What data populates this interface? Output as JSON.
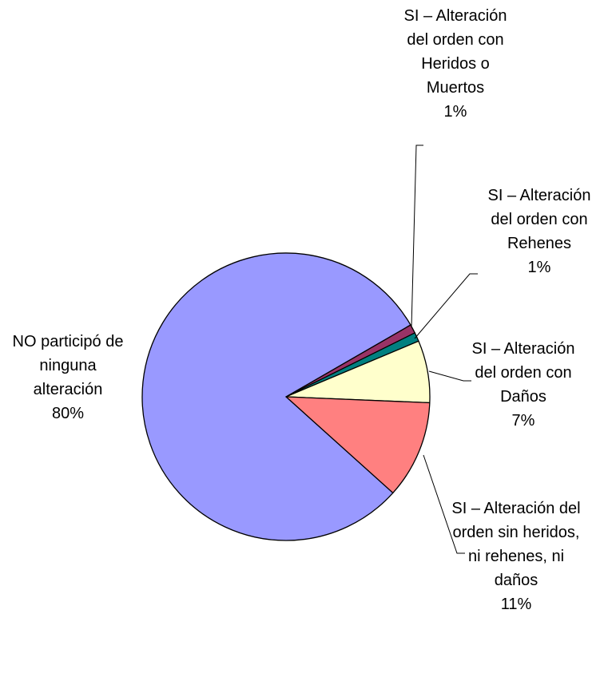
{
  "chart_data": {
    "type": "pie",
    "categories": [
      "SI – Alteración del orden con Heridos o Muertos",
      "SI – Alteración del orden con Rehenes",
      "SI – Alteración del orden con Daños",
      "SI – Alteración del orden sin heridos, ni rehenes, ni daños",
      "NO participó de ninguna alteración"
    ],
    "values": [
      1,
      1,
      7,
      11,
      80
    ],
    "value_labels": [
      "1%",
      "1%",
      "7%",
      "11%",
      "80%"
    ],
    "colors": [
      "#993366",
      "#008080",
      "#FFFFCC",
      "#FF8080",
      "#9999FF"
    ]
  }
}
